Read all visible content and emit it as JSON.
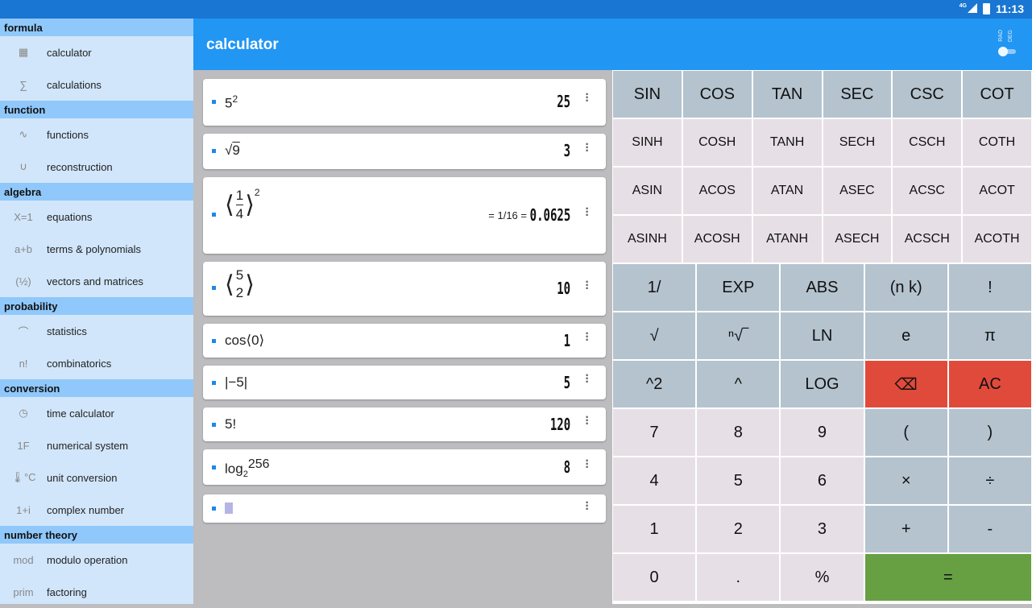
{
  "status_bar": {
    "network": "4G",
    "time": "11:13"
  },
  "header": {
    "title": "calculator",
    "mode_options": [
      "RAD",
      "DEG"
    ],
    "mode_selected": "RAD"
  },
  "sidebar": [
    {
      "section": "formula",
      "items": [
        {
          "icon": "calculator-icon",
          "glyph": "▦",
          "label": "calculator"
        },
        {
          "icon": "sigma-icon",
          "glyph": "∑",
          "label": "calculations"
        }
      ]
    },
    {
      "section": "function",
      "items": [
        {
          "icon": "wave-icon",
          "glyph": "∿",
          "label": "functions"
        },
        {
          "icon": "parabola-icon",
          "glyph": "∪",
          "label": "reconstruction"
        }
      ]
    },
    {
      "section": "algebra",
      "items": [
        {
          "icon": "equation-icon",
          "glyph": "X=1",
          "label": "equations"
        },
        {
          "icon": "terms-icon",
          "glyph": "a+b",
          "label": "terms & polynomials"
        },
        {
          "icon": "vector-icon",
          "glyph": "(½)",
          "label": "vectors and matrices"
        }
      ]
    },
    {
      "section": "probability",
      "items": [
        {
          "icon": "bell-curve-icon",
          "glyph": "⌒",
          "label": "statistics"
        },
        {
          "icon": "factorial-icon",
          "glyph": "n!",
          "label": "combinatorics"
        }
      ]
    },
    {
      "section": "conversion",
      "items": [
        {
          "icon": "clock-icon",
          "glyph": "◷",
          "label": "time calculator"
        },
        {
          "icon": "hex-icon",
          "glyph": "1F",
          "label": "numerical system"
        },
        {
          "icon": "thermometer-icon",
          "glyph": "🌡°C",
          "label": "unit conversion"
        },
        {
          "icon": "complex-icon",
          "glyph": "1+i",
          "label": "complex number"
        }
      ]
    },
    {
      "section": "number theory",
      "items": [
        {
          "icon": "mod-icon",
          "glyph": "mod",
          "label": "modulo operation"
        },
        {
          "icon": "prime-icon",
          "glyph": "prim",
          "label": "factoring"
        }
      ]
    }
  ],
  "history": [
    {
      "base": "5",
      "exp": "2",
      "result": "25"
    },
    {
      "radicand": "9",
      "result": "3"
    },
    {
      "num": "1",
      "den": "4",
      "exp": "2",
      "fraction": "= 1/16 =",
      "result": "0.0625"
    },
    {
      "n": "5",
      "k": "2",
      "result": "10"
    },
    {
      "expr": "cos⟨0⟩",
      "result": "1"
    },
    {
      "expr": "|−5|",
      "result": "5"
    },
    {
      "expr": "5!",
      "result": "120"
    },
    {
      "fn": "log",
      "base": "2",
      "arg": "256",
      "result": "8"
    },
    {
      "expr": "",
      "result": ""
    }
  ],
  "keypad": {
    "trig": [
      [
        "SIN",
        "COS",
        "TAN",
        "SEC",
        "CSC",
        "COT"
      ],
      [
        "SINH",
        "COSH",
        "TANH",
        "SECH",
        "CSCH",
        "COTH"
      ],
      [
        "ASIN",
        "ACOS",
        "ATAN",
        "ASEC",
        "ACSC",
        "ACOT"
      ],
      [
        "ASINH",
        "ACOSH",
        "ATANH",
        "ASECH",
        "ACSCH",
        "ACOTH"
      ]
    ],
    "keys": [
      "1/",
      "EXP",
      "ABS",
      "(n k)",
      "!",
      "√",
      "ⁿ√‾",
      "LN",
      "e",
      "π",
      "^2",
      "^",
      "LOG",
      "⌫",
      "AC",
      "7",
      "8",
      "9",
      "(",
      ")",
      "4",
      "5",
      "6",
      "×",
      "÷",
      "1",
      "2",
      "3",
      "+",
      "-",
      "0",
      ".",
      "%",
      "="
    ]
  },
  "colors": {
    "accent": "#2196f3",
    "function_key": "#b4c3ce",
    "number_key": "#e7dfe6",
    "clear_key": "#e04a3b",
    "equals_key": "#66a043"
  }
}
